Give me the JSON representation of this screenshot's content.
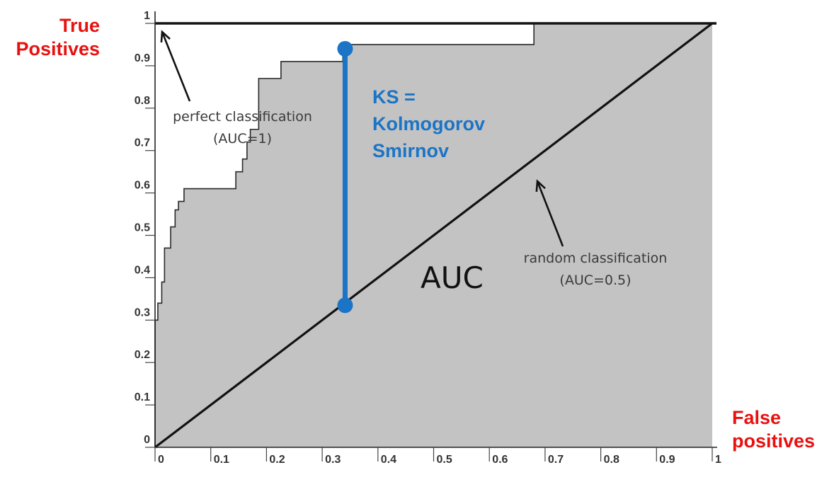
{
  "chart_data": {
    "type": "line",
    "title": "",
    "xlabel": "False\npositives",
    "ylabel": "True\nPositives",
    "xlim": [
      0,
      1
    ],
    "ylim": [
      0,
      1
    ],
    "x_ticks": [
      "0",
      "0.1",
      "0.2",
      "0.3",
      "0.4",
      "0.5",
      "0.6",
      "0.7",
      "0.8",
      "0.9",
      "1"
    ],
    "y_ticks": [
      "0",
      "0.1",
      "0.2",
      "0.3",
      "0.4",
      "0.5",
      "0.6",
      "0.7",
      "0.8",
      "0.9",
      "1"
    ],
    "grid": false,
    "legend": "none",
    "series": [
      {
        "role": "roc-curve",
        "x": [
          0,
          0,
          0.005,
          0.005,
          0.012,
          0.012,
          0.017,
          0.017,
          0.028,
          0.028,
          0.036,
          0.036,
          0.042,
          0.042,
          0.052,
          0.052,
          0.145,
          0.145,
          0.157,
          0.157,
          0.165,
          0.165,
          0.171,
          0.171,
          0.186,
          0.186,
          0.226,
          0.226,
          0.337,
          0.337,
          0.68,
          0.68,
          1
        ],
        "y": [
          0,
          0.3,
          0.3,
          0.34,
          0.34,
          0.39,
          0.39,
          0.47,
          0.47,
          0.52,
          0.52,
          0.56,
          0.56,
          0.58,
          0.58,
          0.61,
          0.61,
          0.65,
          0.65,
          0.68,
          0.68,
          0.72,
          0.72,
          0.75,
          0.75,
          0.87,
          0.87,
          0.91,
          0.91,
          0.95,
          0.95,
          1,
          1
        ]
      },
      {
        "role": "perfect-classification",
        "x": [
          0,
          1
        ],
        "y": [
          1,
          1
        ]
      },
      {
        "role": "random-classification",
        "x": [
          0,
          1
        ],
        "y": [
          0,
          1
        ]
      }
    ],
    "ks_line": {
      "x": 0.35,
      "y_low": 0.34,
      "y_high": 0.95
    },
    "annotations": {
      "ks": [
        "KS =",
        "Kolmogorov",
        "Smirnov"
      ],
      "perfect": [
        "perfect classification",
        "(AUC=1)"
      ],
      "random": [
        "random classification",
        "(AUC=0.5)"
      ],
      "auc": "AUC"
    },
    "colors": {
      "area": "#c3c3c3",
      "line": "#111111",
      "ks": "#1b74c5",
      "axis_word": "#e8110f",
      "tick_text": "#333333"
    }
  }
}
